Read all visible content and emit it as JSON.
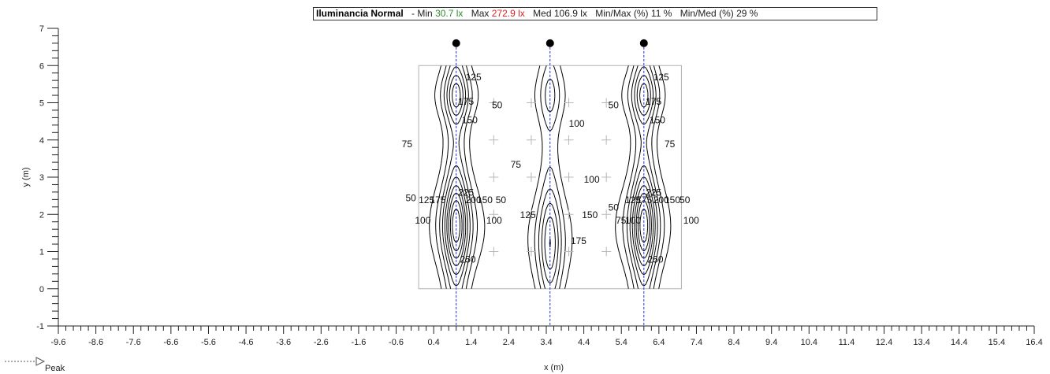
{
  "header": {
    "title": "Iluminancia  Normal",
    "min_label": "- Min",
    "min_value": "30.7 lx",
    "max_label": "Max",
    "max_value": "272.9 lx",
    "med_label": "Med",
    "med_value": "106.9 lx",
    "minmax_label": "Min/Max (%)",
    "minmax_value": "11 %",
    "minmed_label": "Min/Med (%)",
    "minmed_value": "29 %"
  },
  "colors": {
    "min": "#2e8b2e",
    "max": "#e02020",
    "luminaire_line": "#1f2fd6",
    "contour": "#000000"
  },
  "legend": {
    "peak_label": "Peak"
  },
  "chart_data": {
    "type": "contour",
    "xlabel": "x (m)",
    "ylabel": "y (m)",
    "xlim": [
      -9.6,
      16.4
    ],
    "ylim": [
      -1,
      7
    ],
    "x_ticks": [
      "-9.6",
      "-8.6",
      "-7.6",
      "-6.6",
      "-5.6",
      "-4.6",
      "-3.6",
      "-2.6",
      "-1.6",
      "-0.6",
      "0.4",
      "1.4",
      "2.4",
      "3.4",
      "4.4",
      "5.4",
      "6.4",
      "7.4",
      "8.4",
      "9.4",
      "10.4",
      "11.4",
      "12.4",
      "13.4",
      "14.4",
      "15.4",
      "16.4"
    ],
    "y_ticks": [
      "-1",
      "0",
      "1",
      "2",
      "3",
      "4",
      "5",
      "6",
      "7"
    ],
    "room": {
      "x": [
        0,
        7
      ],
      "y": [
        0,
        6
      ]
    },
    "luminaires": [
      {
        "x": 1.0,
        "y": 6.6
      },
      {
        "x": 3.5,
        "y": 6.6
      },
      {
        "x": 6.0,
        "y": 6.6
      }
    ],
    "grid_points": [
      {
        "x": 2,
        "y": 5
      },
      {
        "x": 3,
        "y": 5
      },
      {
        "x": 4,
        "y": 5
      },
      {
        "x": 5,
        "y": 5
      },
      {
        "x": 2,
        "y": 4
      },
      {
        "x": 3,
        "y": 4
      },
      {
        "x": 4,
        "y": 4
      },
      {
        "x": 5,
        "y": 4
      },
      {
        "x": 2,
        "y": 3
      },
      {
        "x": 3,
        "y": 3
      },
      {
        "x": 4,
        "y": 3
      },
      {
        "x": 5,
        "y": 3
      },
      {
        "x": 2,
        "y": 2
      },
      {
        "x": 3,
        "y": 2
      },
      {
        "x": 4,
        "y": 2
      },
      {
        "x": 5,
        "y": 2
      },
      {
        "x": 2,
        "y": 1
      },
      {
        "x": 3,
        "y": 1
      },
      {
        "x": 4,
        "y": 1
      },
      {
        "x": 5,
        "y": 1
      }
    ],
    "contour_labels": [
      {
        "text": "125",
        "x": 1.25,
        "y": 5.6
      },
      {
        "text": "175",
        "x": 1.05,
        "y": 4.95
      },
      {
        "text": "150",
        "x": 1.15,
        "y": 4.45
      },
      {
        "text": "50",
        "x": 1.95,
        "y": 4.85
      },
      {
        "text": "75",
        "x": -0.45,
        "y": 3.8
      },
      {
        "text": "100",
        "x": 4.0,
        "y": 4.35
      },
      {
        "text": "75",
        "x": 2.45,
        "y": 3.25
      },
      {
        "text": "100",
        "x": 4.4,
        "y": 2.85
      },
      {
        "text": "50",
        "x": -0.35,
        "y": 2.35
      },
      {
        "text": "125",
        "x": 0.0,
        "y": 2.3
      },
      {
        "text": "175",
        "x": 0.3,
        "y": 2.3
      },
      {
        "text": "225",
        "x": 1.05,
        "y": 2.5
      },
      {
        "text": "200",
        "x": 1.25,
        "y": 2.3
      },
      {
        "text": "150",
        "x": 1.55,
        "y": 2.3
      },
      {
        "text": "50",
        "x": 2.05,
        "y": 2.3
      },
      {
        "text": "100",
        "x": -0.1,
        "y": 1.75
      },
      {
        "text": "100",
        "x": 1.8,
        "y": 1.75
      },
      {
        "text": "125",
        "x": 2.7,
        "y": 1.9
      },
      {
        "text": "150",
        "x": 4.35,
        "y": 1.9
      },
      {
        "text": "175",
        "x": 4.05,
        "y": 1.2
      },
      {
        "text": "50",
        "x": 5.05,
        "y": 2.1
      },
      {
        "text": "75",
        "x": 5.25,
        "y": 1.75
      },
      {
        "text": "100",
        "x": 5.5,
        "y": 1.75
      },
      {
        "text": "125",
        "x": 5.5,
        "y": 2.3
      },
      {
        "text": "175",
        "x": 5.8,
        "y": 2.3
      },
      {
        "text": "225",
        "x": 6.05,
        "y": 2.5
      },
      {
        "text": "200",
        "x": 6.25,
        "y": 2.3
      },
      {
        "text": "150",
        "x": 6.55,
        "y": 2.3
      },
      {
        "text": "50",
        "x": 6.95,
        "y": 2.3
      },
      {
        "text": "100",
        "x": 7.05,
        "y": 1.75
      },
      {
        "text": "125",
        "x": 6.25,
        "y": 5.6
      },
      {
        "text": "175",
        "x": 6.05,
        "y": 4.95
      },
      {
        "text": "150",
        "x": 6.15,
        "y": 4.45
      },
      {
        "text": "50",
        "x": 5.05,
        "y": 4.85
      },
      {
        "text": "75",
        "x": 6.55,
        "y": 3.8
      },
      {
        "text": "250",
        "x": 1.1,
        "y": 0.7
      },
      {
        "text": "250",
        "x": 6.1,
        "y": 0.7
      }
    ]
  }
}
